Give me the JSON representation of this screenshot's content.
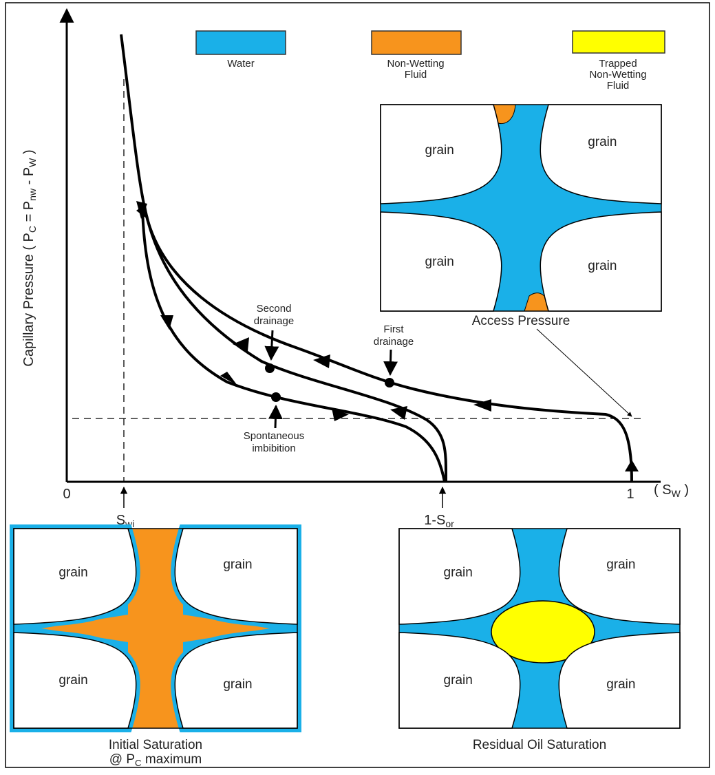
{
  "legend": [
    {
      "label": [
        "Water"
      ],
      "color": "#1ab0e8"
    },
    {
      "label": [
        "Non-Wetting",
        "Fluid"
      ],
      "color": "#f7941d"
    },
    {
      "label": [
        "Trapped",
        "Non-Wetting",
        "Fluid"
      ],
      "color": "#ffff00"
    }
  ],
  "axes": {
    "y_label": [
      "Capillary Pressure ( P",
      "C",
      " = P",
      "nw",
      " - P",
      "W",
      " )"
    ],
    "x_origin": "0",
    "x_end": "1",
    "x_unit": [
      "( S",
      "W",
      " )"
    ],
    "swi": [
      "S",
      "wi"
    ],
    "sor": [
      "1-S",
      "or"
    ]
  },
  "annotations": {
    "second_drainage": [
      "Second",
      "drainage"
    ],
    "first_drainage": [
      "First",
      "drainage"
    ],
    "spontaneous_imbibition": [
      "Spontaneous",
      "imbibition"
    ]
  },
  "panels": [
    {
      "title": [
        "Access Pressure"
      ],
      "grains": [
        "grain",
        "grain",
        "grain",
        "grain"
      ]
    },
    {
      "title": [
        "Initial Saturation",
        "@ P",
        "C",
        " maximum"
      ],
      "grains": [
        "grain",
        "grain",
        "grain",
        "grain"
      ]
    },
    {
      "title": [
        "Residual Oil Saturation"
      ],
      "grains": [
        "grain",
        "grain",
        "grain",
        "grain"
      ]
    }
  ]
}
